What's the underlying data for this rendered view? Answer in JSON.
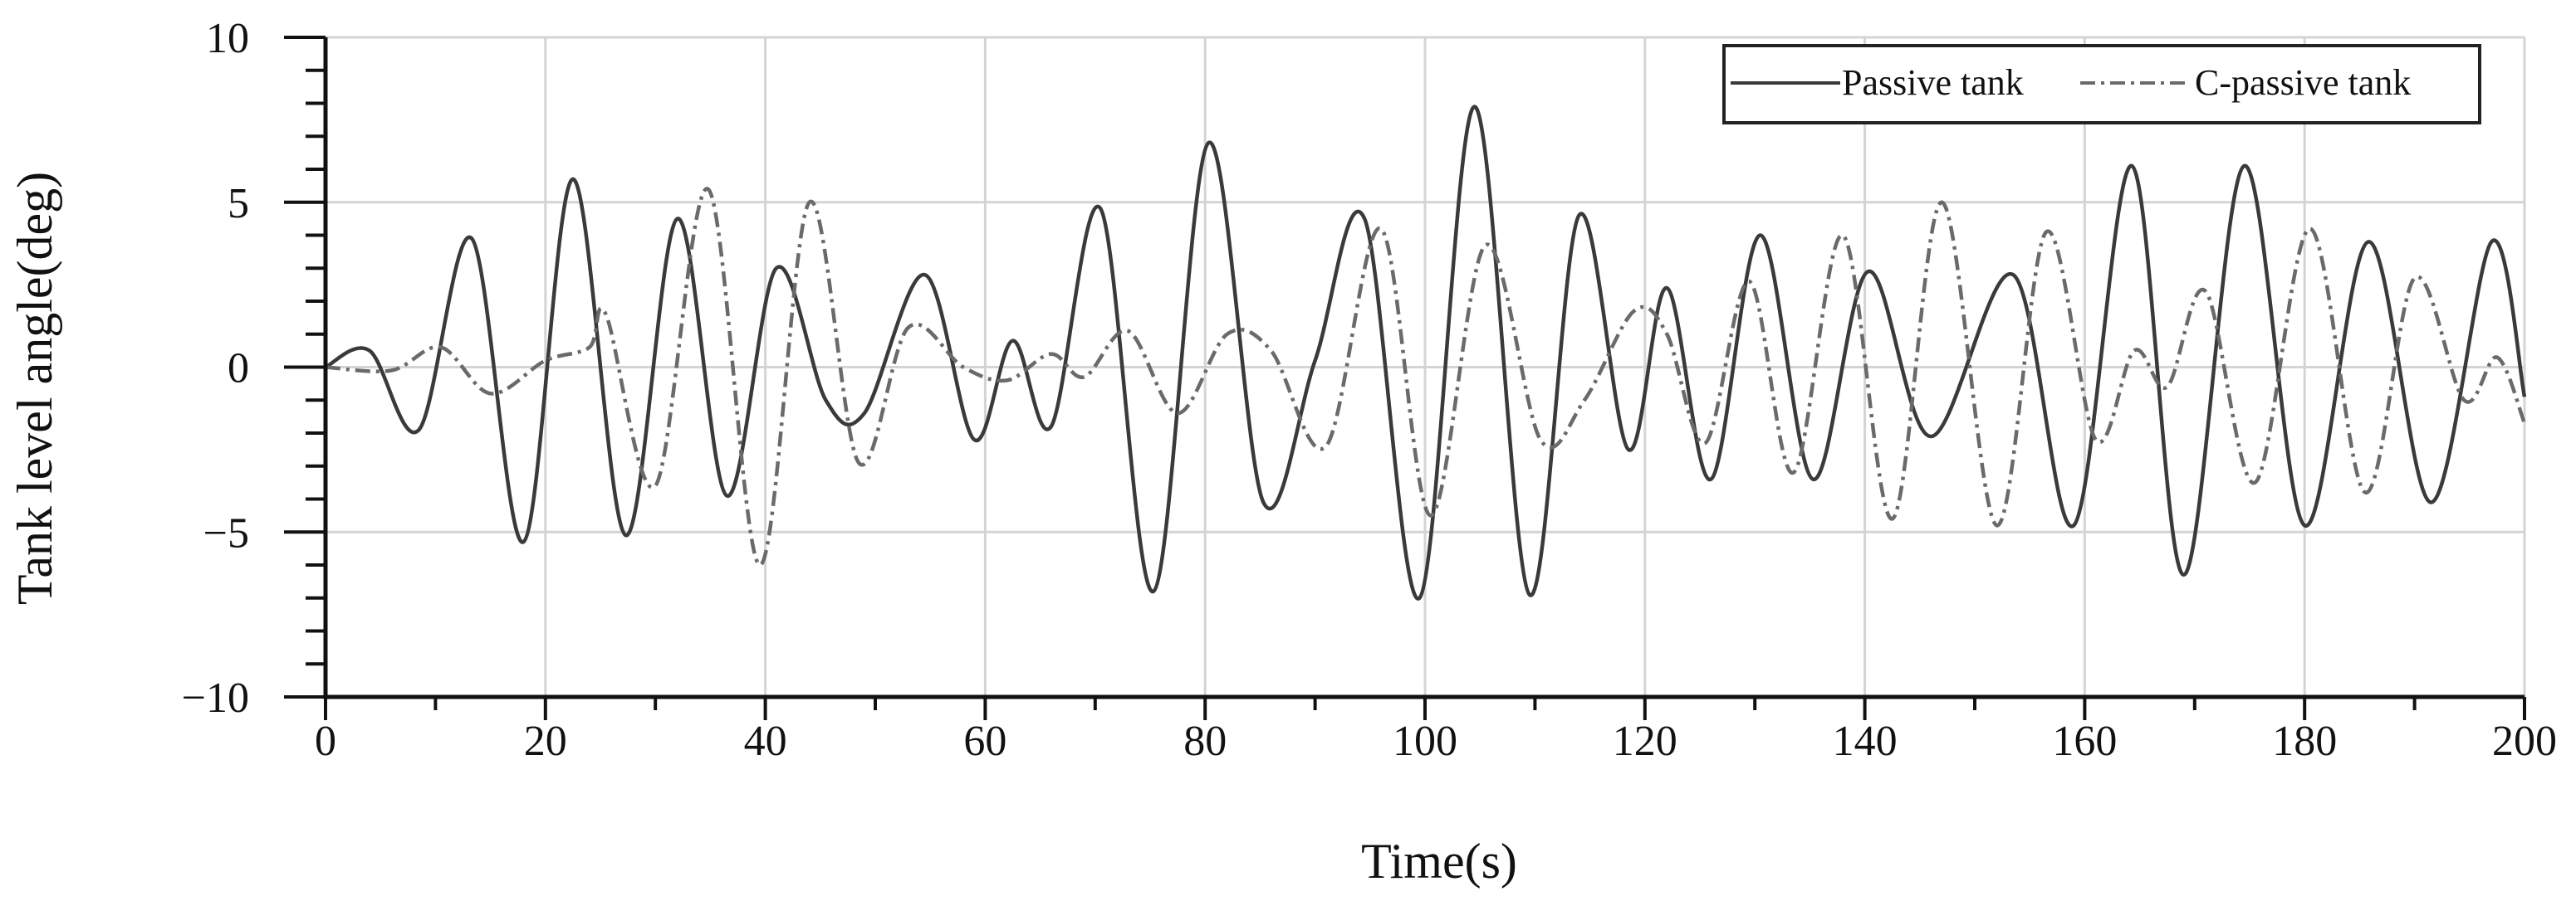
{
  "chart_data": {
    "type": "line",
    "title": "",
    "xlabel": "Time(s)",
    "ylabel": "Tank level angle(deg)",
    "xlim": [
      0,
      200
    ],
    "ylim": [
      -10,
      10
    ],
    "xticks": [
      "0",
      "20",
      "40",
      "60",
      "80",
      "100",
      "120",
      "140",
      "160",
      "180",
      "200"
    ],
    "yticks": [
      "10",
      "5",
      "0",
      "−5",
      "−10"
    ],
    "grid": true,
    "legend_position": "top-right",
    "series": [
      {
        "name": "Passive tank",
        "style": "solid",
        "color": "#3a3a3a",
        "points": [
          [
            0,
            0
          ],
          [
            4,
            0.5
          ],
          [
            8.5,
            -1.9
          ],
          [
            13.3,
            3.9
          ],
          [
            18,
            -5.3
          ],
          [
            22.5,
            5.7
          ],
          [
            27.3,
            -5.1
          ],
          [
            32,
            4.5
          ],
          [
            36.5,
            -3.9
          ],
          [
            41,
            3.0
          ],
          [
            45.5,
            -1.0
          ],
          [
            49,
            -1.4
          ],
          [
            54.5,
            2.8
          ],
          [
            59,
            -2.2
          ],
          [
            62.5,
            0.8
          ],
          [
            66,
            -1.8
          ],
          [
            70.5,
            4.8
          ],
          [
            75.3,
            -6.8
          ],
          [
            80.3,
            6.8
          ],
          [
            85.3,
            -4.1
          ],
          [
            90,
            0.2
          ],
          [
            94.5,
            4.5
          ],
          [
            99.5,
            -7.0
          ],
          [
            104.5,
            7.9
          ],
          [
            109.5,
            -6.9
          ],
          [
            114,
            4.6
          ],
          [
            118.5,
            -2.5
          ],
          [
            122,
            2.4
          ],
          [
            126,
            -3.4
          ],
          [
            130.5,
            4.0
          ],
          [
            135.3,
            -3.4
          ],
          [
            140.3,
            2.9
          ],
          [
            146,
            -2.1
          ],
          [
            153.5,
            2.8
          ],
          [
            159,
            -4.8
          ],
          [
            164.3,
            6.1
          ],
          [
            169,
            -6.3
          ],
          [
            174.5,
            6.1
          ],
          [
            180,
            -4.8
          ],
          [
            185.8,
            3.8
          ],
          [
            191.5,
            -4.1
          ],
          [
            197,
            3.8
          ],
          [
            200,
            -0.9
          ]
        ]
      },
      {
        "name": "C-passive tank",
        "style": "dashdot",
        "color": "#6a6a6a",
        "points": [
          [
            0,
            0
          ],
          [
            6,
            -0.1
          ],
          [
            10.5,
            0.6
          ],
          [
            15,
            -0.8
          ],
          [
            20,
            0.2
          ],
          [
            24,
            0.6
          ],
          [
            25.5,
            1.6
          ],
          [
            30,
            -3.6
          ],
          [
            34.8,
            5.4
          ],
          [
            39.5,
            -6.0
          ],
          [
            44,
            5.0
          ],
          [
            48.5,
            -2.9
          ],
          [
            53,
            1.2
          ],
          [
            58,
            0.0
          ],
          [
            62,
            -0.4
          ],
          [
            66,
            0.4
          ],
          [
            69,
            -0.3
          ],
          [
            73,
            1.1
          ],
          [
            77.5,
            -1.4
          ],
          [
            82,
            1.0
          ],
          [
            86,
            0.5
          ],
          [
            91,
            -2.4
          ],
          [
            96,
            4.2
          ],
          [
            100.5,
            -4.5
          ],
          [
            105.5,
            3.7
          ],
          [
            110.5,
            -2.2
          ],
          [
            114.5,
            -1.0
          ],
          [
            119,
            1.7
          ],
          [
            122,
            1.0
          ],
          [
            125.5,
            -2.3
          ],
          [
            129.5,
            2.6
          ],
          [
            133.5,
            -3.2
          ],
          [
            138,
            4.0
          ],
          [
            142.5,
            -4.6
          ],
          [
            147,
            5.0
          ],
          [
            152,
            -4.8
          ],
          [
            156.5,
            4.1
          ],
          [
            161,
            -2.2
          ],
          [
            164.5,
            0.5
          ],
          [
            167.5,
            -0.6
          ],
          [
            171,
            2.3
          ],
          [
            175.5,
            -3.5
          ],
          [
            180.5,
            4.2
          ],
          [
            185.5,
            -3.8
          ],
          [
            190,
            2.7
          ],
          [
            194.5,
            -1.0
          ],
          [
            197.5,
            0.3
          ],
          [
            200,
            -1.7
          ]
        ]
      }
    ]
  }
}
